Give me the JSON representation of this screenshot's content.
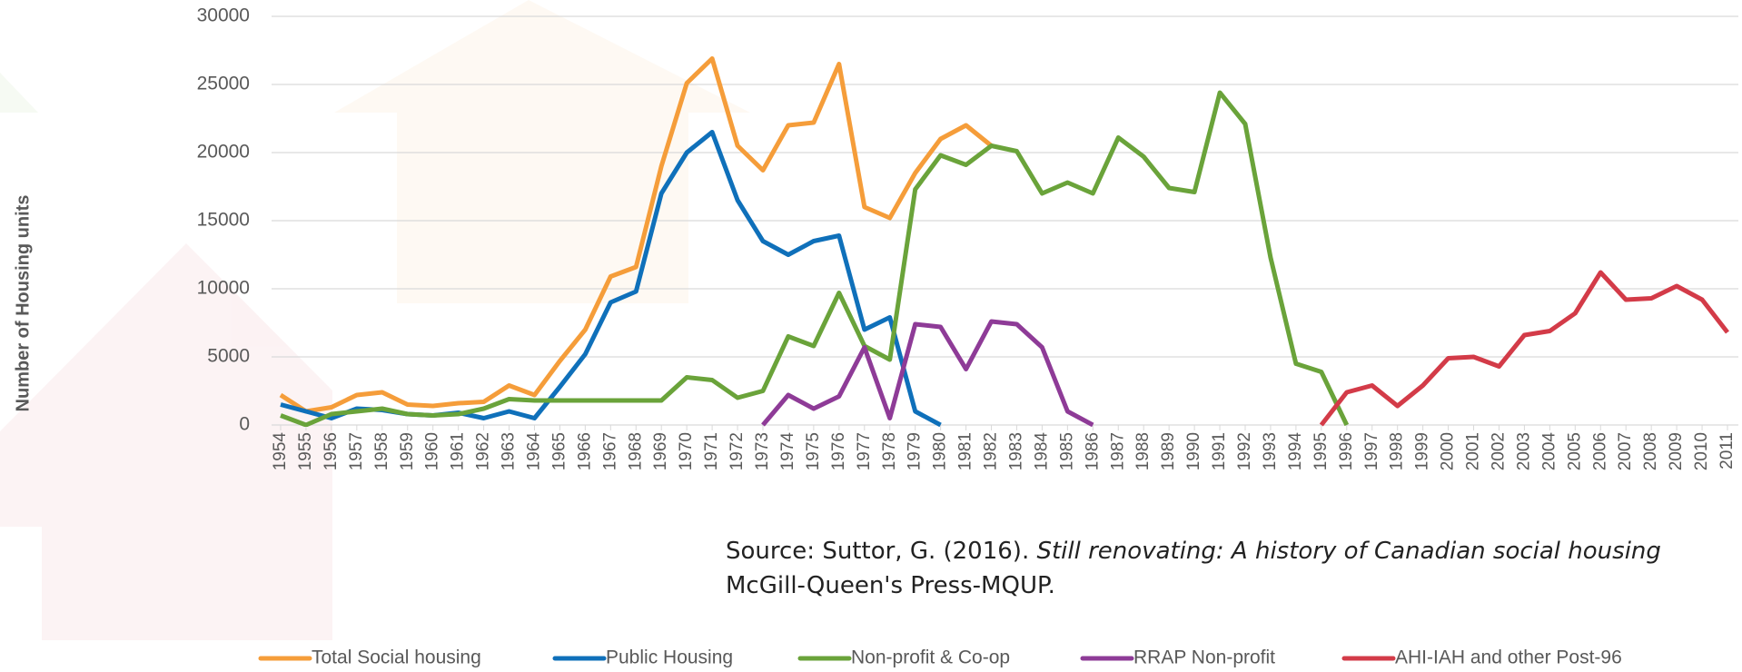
{
  "chart_data": {
    "type": "line",
    "y_label": "Number of Housing units",
    "source": {
      "prefix": "Source: Suttor, G. (2016).",
      "title": "Still renovating: A history of Canadian social housing",
      "line2": "McGill-Queen's Press-MQUP."
    },
    "categories": [
      "1954",
      "1955",
      "1956",
      "1957",
      "1958",
      "1959",
      "1960",
      "1961",
      "1962",
      "1963",
      "1964",
      "1965",
      "1966",
      "1967",
      "1968",
      "1969",
      "1970",
      "1971",
      "1972",
      "1973",
      "1974",
      "1975",
      "1976",
      "1977",
      "1978",
      "1979",
      "1980",
      "1981",
      "1982",
      "1983",
      "1984",
      "1985",
      "1986",
      "1987",
      "1988",
      "1989",
      "1990",
      "1991",
      "1992",
      "1993",
      "1994",
      "1995",
      "1996",
      "1997",
      "1998",
      "1999",
      "2000",
      "2001",
      "2002",
      "2003",
      "2004",
      "2005",
      "2006",
      "2007",
      "2008",
      "2009",
      "2010",
      "2011"
    ],
    "ylim": [
      0,
      30000
    ],
    "yticks": [
      0,
      5000,
      10000,
      15000,
      20000,
      25000,
      30000
    ],
    "grid": true,
    "series": [
      {
        "name": "Total Social housing",
        "color": "#f59d3a",
        "values": [
          2200,
          1000,
          1300,
          2200,
          2400,
          1500,
          1400,
          1600,
          1700,
          2900,
          2200,
          4700,
          7000,
          10900,
          11600,
          19000,
          25100,
          26900,
          20500,
          18700,
          22000,
          22200,
          26500,
          16000,
          15200,
          18500,
          21000,
          22000,
          20500,
          null,
          null,
          null,
          null,
          null,
          null,
          null,
          null,
          null,
          null,
          null,
          null,
          null,
          null,
          null,
          null,
          null,
          null,
          null,
          null,
          null,
          null,
          null,
          null,
          null,
          null,
          null,
          null,
          null
        ]
      },
      {
        "name": "Public Housing",
        "color": "#0f70ba",
        "values": [
          1500,
          1000,
          500,
          1200,
          1100,
          800,
          700,
          900,
          500,
          1000,
          500,
          2800,
          5200,
          9000,
          9800,
          17000,
          20000,
          21500,
          16500,
          13500,
          12500,
          13500,
          13900,
          7000,
          7900,
          1000,
          0,
          null,
          null,
          null,
          null,
          null,
          null,
          null,
          null,
          null,
          null,
          null,
          null,
          null,
          null,
          null,
          null,
          null,
          null,
          null,
          null,
          null,
          null,
          null,
          null,
          null,
          null,
          null,
          null,
          null,
          null,
          null
        ]
      },
      {
        "name": "Non-profit & Co-op",
        "color": "#6aa33a",
        "values": [
          700,
          0,
          800,
          1000,
          1200,
          800,
          700,
          800,
          1200,
          1900,
          1800,
          1800,
          1800,
          1800,
          1800,
          1800,
          3500,
          3300,
          2000,
          2500,
          6500,
          5800,
          9700,
          5800,
          4800,
          17300,
          19800,
          19100,
          20500,
          20100,
          17000,
          17800,
          17000,
          21100,
          19700,
          17400,
          17100,
          24400,
          22100,
          12300,
          4500,
          3900,
          0,
          null,
          null,
          null,
          null,
          null,
          null,
          null,
          null,
          null,
          null,
          null,
          null,
          null,
          null,
          null
        ]
      },
      {
        "name": "RRAP Non-profit",
        "color": "#8e3b97",
        "values": [
          null,
          null,
          null,
          null,
          null,
          null,
          null,
          null,
          null,
          null,
          null,
          null,
          null,
          null,
          null,
          null,
          null,
          null,
          null,
          0,
          2200,
          1200,
          2100,
          5700,
          500,
          7400,
          7200,
          4100,
          7600,
          7400,
          5700,
          1000,
          0,
          null,
          null,
          null,
          null,
          null,
          null,
          null,
          null,
          null,
          null,
          null,
          null,
          null,
          null,
          null,
          null,
          null,
          null,
          null,
          null,
          null,
          null,
          null,
          null,
          null
        ]
      },
      {
        "name": "AHI-IAH and other Post-96",
        "color": "#d33b48",
        "values": [
          null,
          null,
          null,
          null,
          null,
          null,
          null,
          null,
          null,
          null,
          null,
          null,
          null,
          null,
          null,
          null,
          null,
          null,
          null,
          null,
          null,
          null,
          null,
          null,
          null,
          null,
          null,
          null,
          null,
          null,
          null,
          null,
          null,
          null,
          null,
          null,
          null,
          null,
          null,
          null,
          null,
          0,
          2400,
          2900,
          1400,
          2900,
          4900,
          5000,
          4300,
          6600,
          6900,
          8200,
          11200,
          9200,
          9300,
          10200,
          9200,
          6800
        ]
      }
    ]
  }
}
